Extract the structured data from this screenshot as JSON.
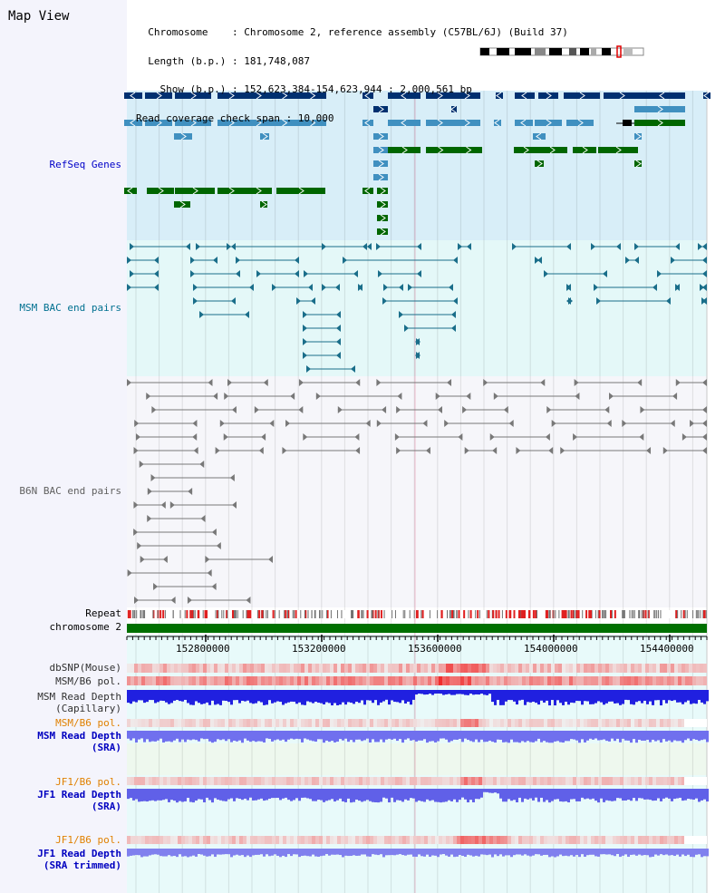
{
  "title": "Map View",
  "header": {
    "lines": [
      "  Chromosome    : Chromosome 2, reference assembly (C57BL/6J) (Build 37)",
      "  Length (b.p.) : 181,748,087",
      "    Show (b.p.) : 152,623,384-154,623,944 : 2,000,561 bp",
      "Read coverage check span : 10,000"
    ]
  },
  "tracks": {
    "refseq": "RefSeq Genes",
    "msm_bac": "MSM BAC end pairs",
    "b6n_bac": "B6N BAC end pairs",
    "repeat": "Repeat",
    "chromosome": "chromosome 2",
    "dbsnp": "dbSNP(Mouse)",
    "msm_b6_pol_1": "MSM/B6 pol.",
    "msm_depth_cap_1": "MSM Read Depth",
    "msm_depth_cap_2": "(Capillary)",
    "msm_b6_pol_2": "MSM/B6 pol.",
    "msm_depth_sra_1": "MSM Read Depth",
    "msm_depth_sra_2": "(SRA)",
    "jf1_b6_pol_1": "JF1/B6 pol.",
    "jf1_depth_sra_1": "JF1 Read Depth",
    "jf1_depth_sra_2": "(SRA)",
    "jf1_b6_pol_2": "JF1/B6 pol.",
    "jf1_depth_trim_1": "JF1 Read Depth",
    "jf1_depth_trim_2": "(SRA trimmed)"
  },
  "axis": {
    "ticks": [
      "152800000",
      "153200000",
      "153600000",
      "154000000",
      "154400000"
    ]
  },
  "colors": {
    "refseq_label": "#0000c8",
    "msm_bac_label": "#007090",
    "b6n_label": "#606060",
    "orange_label": "#e08000",
    "blue_label": "#0000c0",
    "chromosome": "#007000",
    "gene_dark": "#003070",
    "gene_mid": "#4090c0",
    "gene_green": "#006600"
  }
}
